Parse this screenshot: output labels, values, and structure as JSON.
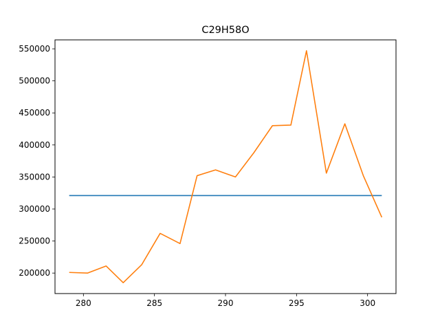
{
  "chart_data": {
    "type": "line",
    "title": "C29H58O",
    "xlabel": "",
    "ylabel": "",
    "xlim": [
      278,
      302
    ],
    "ylim": [
      168000,
      564000
    ],
    "x_ticks": [
      280,
      285,
      290,
      295,
      300
    ],
    "y_ticks": [
      200000,
      250000,
      300000,
      350000,
      400000,
      450000,
      500000,
      550000
    ],
    "grid": false,
    "series": [
      {
        "color": "#1f77b4",
        "x": [
          279.0,
          301.0
        ],
        "y": [
          321000,
          321000
        ]
      },
      {
        "color": "#ff7f0e",
        "x": [
          279.0,
          280.3,
          281.6,
          282.8,
          284.1,
          285.4,
          286.8,
          288.0,
          289.3,
          290.7,
          292.0,
          293.3,
          294.6,
          295.7,
          297.1,
          298.4,
          299.7,
          301.0
        ],
        "y": [
          201000,
          200000,
          211000,
          185000,
          213000,
          262000,
          246000,
          352000,
          361000,
          350000,
          388000,
          430000,
          431000,
          547000,
          356000,
          433000,
          352000,
          287000
        ]
      }
    ]
  }
}
